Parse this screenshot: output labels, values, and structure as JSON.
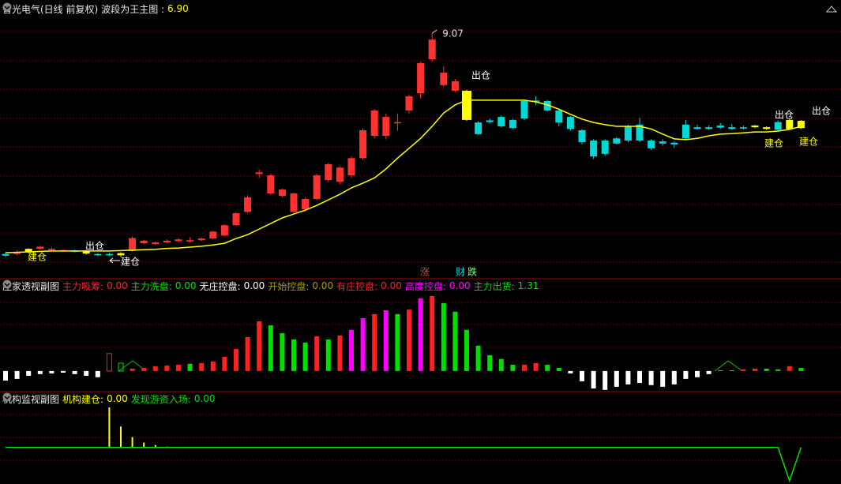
{
  "chart_data": [
    {
      "type": "candlestick",
      "title": "智光电气(日线 前复权)",
      "indicator": "波段为王主图 :",
      "indicator_value": "6.90",
      "open": [
        3.93,
        3.93,
        3.98,
        4.05,
        4.02,
        4.0,
        4.01,
        4.01,
        3.93,
        3.93,
        3.9,
        4.0,
        4.18,
        4.16,
        4.2,
        4.23,
        4.22,
        4.25,
        4.29,
        4.36,
        4.6,
        4.91,
        5.79,
        5.34,
        5.28,
        4.91,
        4.97,
        5.21,
        5.65,
        5.61,
        5.76,
        6.16,
        6.68,
        6.68,
        6.97,
        7.27,
        7.67,
        8.46,
        7.86,
        7.73,
        7.73,
        6.99,
        7.04,
        7.12,
        7.05,
        7.49,
        7.5,
        7.49,
        7.27,
        7.12,
        6.81,
        6.57,
        6.57,
        6.62,
        6.9,
        6.94,
        6.57,
        6.55,
        6.52,
        6.94,
        6.88,
        6.88,
        6.92,
        6.88,
        6.88,
        6.88,
        6.84,
        7.0,
        6.84,
        6.86
      ],
      "high": [
        3.96,
        4.01,
        4.06,
        4.12,
        4.08,
        4.04,
        4.03,
        4.02,
        3.95,
        3.96,
        3.97,
        4.34,
        4.26,
        4.22,
        4.27,
        4.3,
        4.32,
        4.31,
        4.47,
        4.62,
        4.9,
        5.3,
        5.89,
        5.8,
        5.45,
        5.36,
        5.25,
        5.8,
        6.05,
        5.97,
        6.2,
        6.86,
        7.3,
        7.2,
        7.2,
        7.64,
        8.4,
        9.07,
        8.3,
        8.0,
        7.75,
        7.02,
        7.08,
        7.15,
        7.07,
        7.52,
        7.6,
        7.51,
        7.3,
        7.14,
        6.84,
        6.6,
        6.6,
        6.65,
        6.94,
        7.1,
        6.6,
        6.6,
        6.55,
        7.05,
        6.94,
        6.92,
        6.98,
        6.95,
        6.92,
        6.93,
        6.9,
        7.04,
        7.07,
        7.05
      ],
      "low": [
        3.86,
        3.9,
        3.96,
        4.03,
        4.01,
        3.98,
        3.97,
        3.92,
        3.88,
        3.88,
        3.86,
        3.98,
        4.16,
        4.14,
        4.18,
        4.2,
        4.2,
        4.23,
        4.27,
        4.34,
        4.58,
        4.88,
        5.7,
        5.3,
        5.25,
        4.88,
        4.92,
        5.18,
        5.6,
        5.55,
        5.7,
        6.12,
        6.62,
        6.6,
        6.8,
        7.2,
        7.55,
        8.4,
        7.82,
        7.7,
        7.03,
        6.7,
        6.97,
        6.88,
        6.84,
        7.05,
        7.4,
        7.25,
        6.9,
        6.8,
        6.48,
        6.14,
        6.22,
        6.48,
        6.53,
        6.53,
        6.35,
        6.45,
        6.4,
        6.6,
        6.82,
        6.82,
        6.84,
        6.82,
        6.83,
        6.86,
        6.82,
        6.8,
        6.82,
        6.84
      ],
      "close": [
        3.89,
        3.98,
        4.05,
        4.1,
        4.05,
        4.02,
        3.99,
        3.94,
        3.9,
        3.9,
        3.95,
        4.3,
        4.24,
        4.2,
        4.24,
        4.27,
        4.25,
        4.29,
        4.45,
        4.6,
        4.88,
        5.25,
        5.83,
        5.76,
        5.43,
        5.34,
        5.21,
        5.76,
        6.02,
        5.94,
        6.16,
        6.81,
        7.27,
        7.12,
        7.0,
        7.6,
        8.37,
        8.92,
        8.15,
        7.95,
        7.05,
        6.72,
        7.0,
        6.9,
        6.86,
        7.08,
        7.48,
        7.27,
        6.99,
        6.84,
        6.53,
        6.2,
        6.26,
        6.5,
        6.57,
        6.57,
        6.39,
        6.5,
        6.48,
        6.62,
        6.84,
        6.84,
        6.87,
        6.84,
        6.85,
        6.92,
        6.88,
        6.82,
        7.05,
        7.03
      ],
      "colors": [
        "#00d8d8",
        "#ff3232",
        "#ffff00",
        "#ff3232",
        "#ff3232",
        "#ff3232",
        "#00d8d8",
        "#ffff00",
        "#00d8d8",
        "#00d8d8",
        "#ffff00",
        "#ff3232",
        "#ff3232",
        "#ff3232",
        "#ff3232",
        "#ff3232",
        "#ff3232",
        "#ff3232",
        "#ff3232",
        "#ff3232",
        "#ff3232",
        "#ff3232",
        "#ff3232",
        "#ff3232",
        "#ff3232",
        "#ff3232",
        "#ff3232",
        "#ff3232",
        "#ff3232",
        "#ff3232",
        "#ff3232",
        "#ff3232",
        "#ff3232",
        "#ff3232",
        "#ff3232",
        "#ff3232",
        "#ff3232",
        "#ff3232",
        "#ff3232",
        "#ff3232",
        "#ffff00",
        "#00d8d8",
        "#00d8d8",
        "#00d8d8",
        "#00d8d8",
        "#00d8d8",
        "#00d8d8",
        "#00d8d8",
        "#00d8d8",
        "#00d8d8",
        "#00d8d8",
        "#00d8d8",
        "#00d8d8",
        "#00d8d8",
        "#00d8d8",
        "#00d8d8",
        "#00d8d8",
        "#00d8d8",
        "#00d8d8",
        "#00d8d8",
        "#00d8d8",
        "#00d8d8",
        "#00d8d8",
        "#00d8d8",
        "#00d8d8",
        "#ffff00",
        "#ffff00",
        "#00d8d8",
        "#ffff00",
        "#ffff00"
      ],
      "ma": {
        "color": "#ffff00",
        "values": [
          3.96,
          3.97,
          3.98,
          3.99,
          4.0,
          4.0,
          4.0,
          4.0,
          4.0,
          4.0,
          4.01,
          4.02,
          4.03,
          4.04,
          4.06,
          4.07,
          4.09,
          4.11,
          4.14,
          4.18,
          4.29,
          4.38,
          4.51,
          4.64,
          4.77,
          4.86,
          4.95,
          5.06,
          5.19,
          5.32,
          5.47,
          5.58,
          5.7,
          5.91,
          6.16,
          6.39,
          6.62,
          6.9,
          7.21,
          7.4,
          7.51,
          7.51,
          7.51,
          7.51,
          7.51,
          7.51,
          7.47,
          7.4,
          7.3,
          7.18,
          7.07,
          6.99,
          6.94,
          6.9,
          6.9,
          6.9,
          6.84,
          6.72,
          6.61,
          6.59,
          6.62,
          6.68,
          6.72,
          6.73,
          6.75,
          6.77,
          6.77,
          6.79,
          6.83,
          6.9
        ]
      },
      "ylim": [
        3.41,
        9.51
      ],
      "annotations": [
        "出仓",
        "建仓",
        "建仓",
        "出仓",
        "出仓",
        "建仓",
        "出仓",
        "建仓",
        "涨",
        "财",
        "跌"
      ]
    },
    {
      "type": "bar",
      "title": "庄家透视副图",
      "readouts": [
        {
          "label": "主力吸筹:",
          "value": "0.00",
          "color": "#ff2020"
        },
        {
          "label": "主力洗盘:",
          "value": "0.00",
          "color": "#00e000"
        },
        {
          "label": "无庄控盘:",
          "value": "0.00",
          "color": "#ffffff"
        },
        {
          "label": "开始控盘:",
          "value": "0.00",
          "color": "#a0a000"
        },
        {
          "label": "有庄控盘:",
          "value": "0.00",
          "color": "#ff2020"
        },
        {
          "label": "高度控盘:",
          "value": "0.00",
          "color": "#ff00ff"
        },
        {
          "label": "主力出货:",
          "value": "1.31",
          "color": "#00e000"
        }
      ],
      "values": [
        -4.0,
        -3.3,
        -2.0,
        -1.3,
        -1.0,
        -0.7,
        -1.3,
        -2.0,
        -2.6,
        7.3,
        3.3,
        1.0,
        1.3,
        2.0,
        2.3,
        2.6,
        3.0,
        3.3,
        4.0,
        5.9,
        9.2,
        14.2,
        20.8,
        19.1,
        15.8,
        13.2,
        11.9,
        14.5,
        13.2,
        14.9,
        17.2,
        22.1,
        23.8,
        25.4,
        23.8,
        25.7,
        30.4,
        31.4,
        28.4,
        24.8,
        17.2,
        10.6,
        6.6,
        5.0,
        2.6,
        2.6,
        3.3,
        2.6,
        1.3,
        -1.0,
        -4.3,
        -7.3,
        -7.9,
        -6.6,
        -5.6,
        -5.0,
        -5.9,
        -6.6,
        -5.6,
        -3.3,
        -2.6,
        -1.3,
        0.3,
        0.3,
        0.7,
        1.0,
        1.0,
        0.7,
        2.0,
        1.31
      ],
      "colors": [
        "#ffffff",
        "#ffffff",
        "#ffffff",
        "#ffffff",
        "#ffffff",
        "#ffffff",
        "#ffffff",
        "#ffffff",
        "#ffffff",
        "#ff2020",
        "#00e000",
        "#ff2020",
        "#ff2020",
        "#ff2020",
        "#ff2020",
        "#ff2020",
        "#00e000",
        "#ff2020",
        "#ff2020",
        "#ff2020",
        "#ff2020",
        "#ff2020",
        "#ff2020",
        "#00e000",
        "#00e000",
        "#00e000",
        "#00e000",
        "#ff2020",
        "#00e000",
        "#ff2020",
        "#ff00ff",
        "#ff00ff",
        "#ff2020",
        "#ff00ff",
        "#00e000",
        "#ff2020",
        "#ff00ff",
        "#ff2020",
        "#00e000",
        "#00e000",
        "#00e000",
        "#00e000",
        "#00e000",
        "#00e000",
        "#00e000",
        "#ff2020",
        "#ff2020",
        "#00e000",
        "#00e000",
        "#ffffff",
        "#ffffff",
        "#ffffff",
        "#ffffff",
        "#ffffff",
        "#ffffff",
        "#ffffff",
        "#ffffff",
        "#ffffff",
        "#ffffff",
        "#ffffff",
        "#ffffff",
        "#ffffff",
        "#00e000",
        "#00e000",
        "#ff2020",
        "#ff2020",
        "#00e000",
        "#00e000",
        "#ff2020",
        "#00e000"
      ],
      "outlined": [
        9,
        10
      ],
      "ylim": [
        -8.3,
        37.3
      ]
    },
    {
      "type": "line",
      "title": "机构监视副图",
      "series": [
        {
          "name": "机构建仓:",
          "value": "0.00",
          "color": "#ffff00",
          "style": "bar",
          "values": [
            null,
            null,
            null,
            null,
            null,
            null,
            null,
            null,
            null,
            16.7,
            8.7,
            4.3,
            2.0,
            1.0,
            0.3,
            null,
            null,
            null,
            null,
            null,
            null,
            null,
            null,
            null,
            null,
            null,
            null,
            null,
            null,
            null,
            null,
            null,
            null,
            null,
            null,
            null,
            null,
            null,
            null,
            null,
            null,
            null,
            null,
            null,
            null,
            null,
            null,
            null,
            null,
            null,
            null,
            null,
            null,
            null,
            null,
            null,
            null,
            null,
            null,
            null,
            null,
            null,
            null,
            null,
            null,
            null,
            null,
            null,
            null,
            null
          ]
        },
        {
          "name": "发现游资入场:",
          "value": "0.00",
          "color": "#00e000",
          "style": "line",
          "values": [
            0,
            0,
            0,
            0,
            0,
            0,
            0,
            0,
            0,
            0,
            0,
            0,
            0,
            0,
            0,
            0,
            0,
            0,
            0,
            0,
            0,
            0,
            0,
            0,
            0,
            0,
            0,
            0,
            0,
            0,
            0,
            0,
            0,
            0,
            0,
            0,
            0,
            0,
            0,
            0,
            0,
            0,
            0,
            0,
            0,
            0,
            0,
            0,
            0,
            0,
            0,
            0,
            0,
            0,
            0,
            0,
            0,
            0,
            0,
            0,
            0,
            0,
            0,
            0,
            0,
            0,
            0,
            0,
            -14,
            0
          ]
        }
      ],
      "ylim": [
        -15,
        22
      ]
    }
  ]
}
